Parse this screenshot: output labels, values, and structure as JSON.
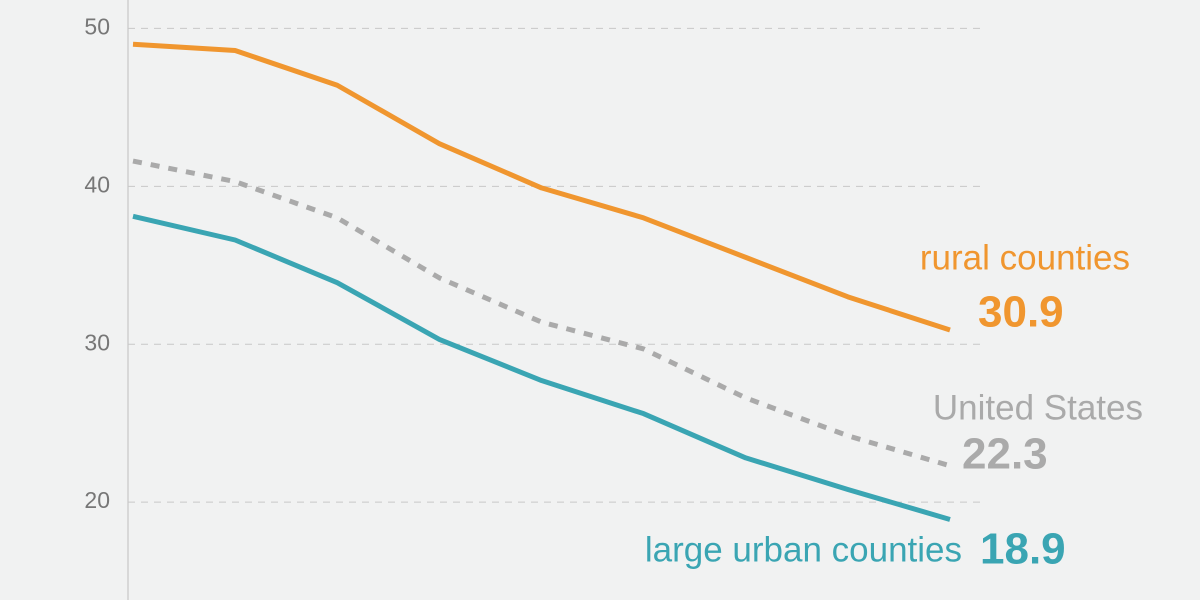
{
  "chart_data": {
    "type": "line",
    "categories": [
      null,
      null,
      null,
      null,
      null,
      null,
      null,
      null,
      null
    ],
    "series": [
      {
        "name": "rural counties",
        "color": "#f0962f",
        "line_style": "solid",
        "values": [
          49.0,
          48.6,
          46.4,
          42.7,
          39.9,
          38.0,
          35.5,
          33.0,
          30.9
        ]
      },
      {
        "name": "United States",
        "color": "#aaaaaa",
        "line_style": "dashed",
        "values": [
          41.6,
          40.3,
          38.0,
          34.2,
          31.4,
          29.7,
          26.6,
          24.2,
          22.3
        ]
      },
      {
        "name": "large urban counties",
        "color": "#3aa5b3",
        "line_style": "solid",
        "values": [
          38.1,
          36.6,
          33.9,
          30.3,
          27.7,
          25.6,
          22.8,
          20.8,
          18.9
        ]
      }
    ],
    "ylim": [
      13.8,
      51.8
    ],
    "yticks": [
      20,
      30,
      40,
      50
    ],
    "grid": true
  }
}
